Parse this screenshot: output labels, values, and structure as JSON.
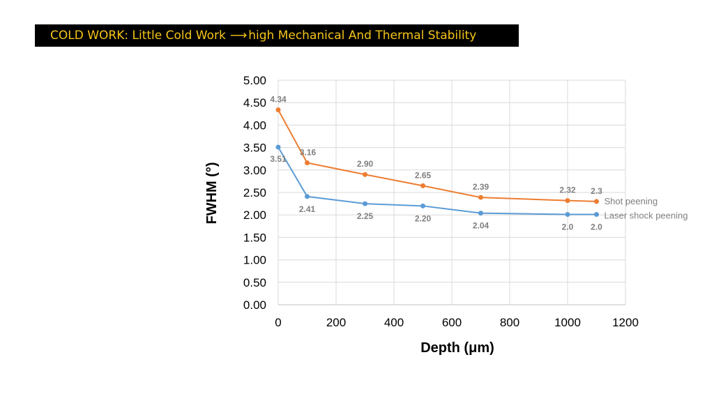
{
  "banner": {
    "prefix": "COLD WORK:  Little Cold Work",
    "arrow": "⟶",
    "suffix": "high Mechanical And Thermal Stability",
    "bg_color": "#000000",
    "text_color": "#f5c518"
  },
  "chart_data": {
    "type": "line",
    "title": "",
    "xlabel": "Depth (μm)",
    "ylabel": "FWHM (°)",
    "xlim": [
      0,
      1200
    ],
    "ylim": [
      0,
      5
    ],
    "x_ticks": [
      "0",
      "200",
      "400",
      "600",
      "800",
      "1000",
      "1200"
    ],
    "y_ticks": [
      "0.00",
      "0.50",
      "1.00",
      "1.50",
      "2.00",
      "2.50",
      "3.00",
      "3.50",
      "4.00",
      "4.50",
      "5.00"
    ],
    "grid": true,
    "legend_placement": "right, at line ends",
    "series": [
      {
        "name": "Shot peening",
        "color": "#ed7d31",
        "x": [
          0,
          100,
          300,
          500,
          700,
          1000,
          1100
        ],
        "y": [
          4.34,
          3.16,
          2.9,
          2.65,
          2.39,
          2.32,
          2.3
        ],
        "labels": [
          "4.34",
          "3.16",
          "2.90",
          "2.65",
          "2.39",
          "2.32",
          "2.3"
        ]
      },
      {
        "name": "Laser shock  peening",
        "color": "#5b9bd5",
        "x": [
          0,
          100,
          300,
          500,
          700,
          1000,
          1100
        ],
        "y": [
          3.51,
          2.41,
          2.25,
          2.2,
          2.04,
          2.01,
          2.01
        ],
        "labels": [
          "3.51",
          "2.41",
          "2.25",
          "2.20",
          "2.04",
          "2.0",
          "2.0"
        ]
      }
    ]
  }
}
